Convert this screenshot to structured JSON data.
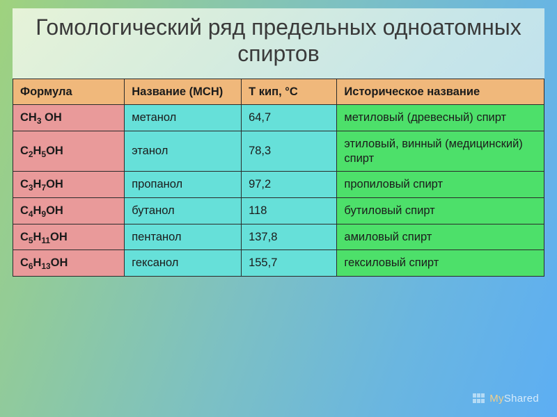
{
  "slide": {
    "title": "Гомологический ряд предельных одноатомных спиртов",
    "background_gradient": [
      "#9fd27e",
      "#8ec9a1",
      "#7cc0c4",
      "#6ab6e0",
      "#5daef3"
    ]
  },
  "table": {
    "type": "table",
    "background_color": "#ffffff",
    "border_color": "#2a2a2a",
    "header_fontsize": 17,
    "cell_fontsize": 16.5,
    "column_widths_pct": [
      21,
      22,
      18,
      39
    ],
    "columns": [
      {
        "key": "formula",
        "label": "Формула",
        "bg": "#f0b87b"
      },
      {
        "key": "name",
        "label": "   Название (МСН)",
        "bg": "#f0b87b"
      },
      {
        "key": "tk",
        "label": "  Т кип, °С",
        "bg": "#f0b87b"
      },
      {
        "key": "hist",
        "label": "Историческое название",
        "bg": "#f0b87b"
      }
    ],
    "column_colors": {
      "formula": "#e99a9a",
      "name": "#66e0d9",
      "tk": "#66e0d9",
      "hist": "#4de06a"
    },
    "rows": [
      {
        "formula_main": "CH",
        "formula_sub1": "3",
        "formula_mid": " ",
        "formula_sub2": "",
        "formula_tail": "OH",
        "name": "метанол",
        "tk": "64,7",
        "hist": "метиловый (древесный) спирт"
      },
      {
        "formula_main": "C",
        "formula_sub1": "2",
        "formula_mid": "H",
        "formula_sub2": "5",
        "formula_tail": "OH",
        "name": "этанол",
        "tk": "78,3",
        "hist": "этиловый, винный (медицинский) спирт"
      },
      {
        "formula_main": "C",
        "formula_sub1": "3",
        "formula_mid": "H",
        "formula_sub2": "7",
        "formula_tail": "OH",
        "name": "пропанол",
        "tk": "97,2",
        "hist": "пропиловый спирт"
      },
      {
        "formula_main": "C",
        "formula_sub1": "4",
        "formula_mid": "H",
        "formula_sub2": "9",
        "formula_tail": "OH",
        "name": "бутанол",
        "tk": "118",
        "hist": "бутиловый спирт"
      },
      {
        "formula_main": "C",
        "formula_sub1": "5",
        "formula_mid": "H",
        "formula_sub2": "11",
        "formula_tail": "OH",
        "name": "пентанол",
        "tk": "137,8",
        "hist": "амиловый спирт"
      },
      {
        "formula_main": "C",
        "formula_sub1": "6",
        "formula_mid": "H",
        "formula_sub2": "13",
        "formula_tail": "OH",
        "name": "гексанол",
        "tk": "155,7",
        "hist": "гексиловый спирт"
      }
    ]
  },
  "watermark": {
    "prefix": "My",
    "suffix": "Shared"
  }
}
